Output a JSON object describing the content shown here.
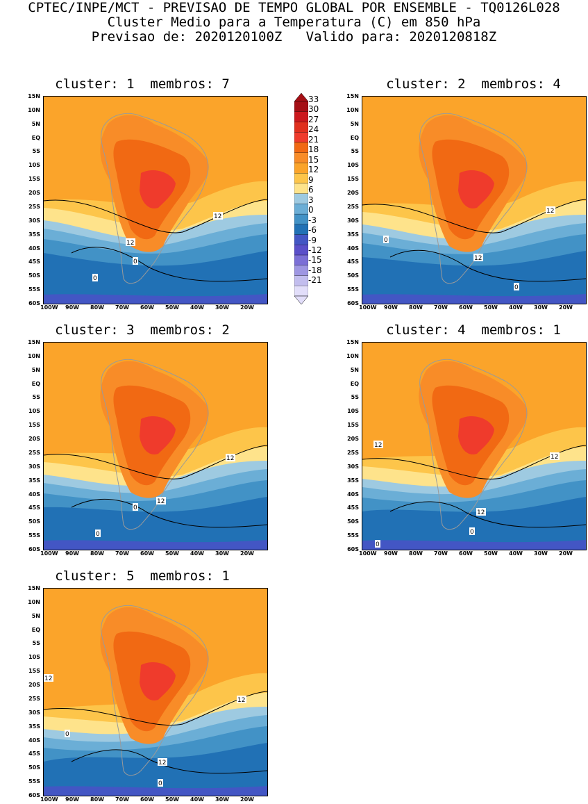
{
  "header": {
    "line1": "CPTEC/INPE/MCT - PREVISAO DE TEMPO GLOBAL POR ENSEMBLE - TQ0126L028",
    "line2": "Cluster Medio para a Temperatura (C) em 850 hPa",
    "line3": "Previsao de: 2020120100Z   Valido para: 2020120818Z"
  },
  "panels": [
    {
      "title": "cluster: 1  membros: 7",
      "contour_labels": [
        "12",
        "12",
        "0",
        "0"
      ]
    },
    {
      "title": "cluster: 2  membros: 4",
      "contour_labels": [
        "12",
        "12",
        "0",
        "0"
      ]
    },
    {
      "title": "cluster: 3  membros: 2",
      "contour_labels": [
        "12",
        "12",
        "0",
        "0"
      ]
    },
    {
      "title": "cluster: 4  membros: 1",
      "contour_labels": [
        "12",
        "12",
        "12",
        "0",
        "0"
      ]
    },
    {
      "title": "cluster: 5  membros: 1",
      "contour_labels": [
        "12",
        "12",
        "12",
        "0",
        "0"
      ]
    }
  ],
  "lat_labels": [
    "15N",
    "10N",
    "5N",
    "EQ",
    "5S",
    "10S",
    "15S",
    "20S",
    "25S",
    "30S",
    "35S",
    "40S",
    "45S",
    "50S",
    "55S",
    "60S"
  ],
  "lon_labels": [
    "100W",
    "90W",
    "80W",
    "70W",
    "60W",
    "50W",
    "40W",
    "30W",
    "20W"
  ],
  "colorbar": {
    "labels": [
      "33",
      "30",
      "27",
      "24",
      "21",
      "18",
      "15",
      "12",
      "9",
      "6",
      "3",
      "0",
      "-3",
      "-6",
      "-9",
      "-12",
      "-15",
      "-18",
      "-21"
    ],
    "colors": [
      "#a50f15",
      "#cb181d",
      "#e0301e",
      "#ef3b2c",
      "#f16913",
      "#f88c28",
      "#fba42a",
      "#fdc54a",
      "#fee38b",
      "#9ecae1",
      "#6baed6",
      "#4292c6",
      "#2171b5",
      "#4356c4",
      "#5a4fc9",
      "#7b6fd6",
      "#9e96e2",
      "#c2bdee",
      "#e2defa"
    ]
  }
}
